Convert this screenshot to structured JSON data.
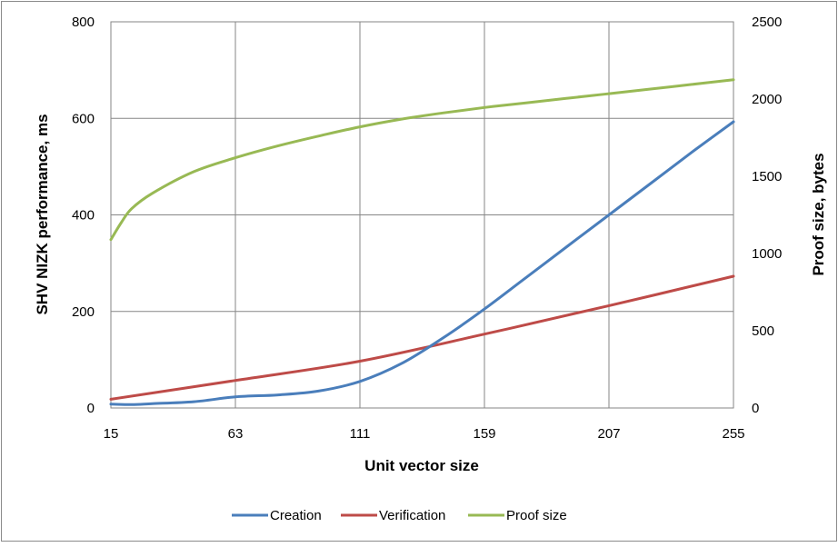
{
  "chart_data": {
    "type": "line",
    "title": "",
    "xlabel": "Unit vector size",
    "ylabel": "SHV NIZK performance, ms",
    "y2label": "Proof size, bytes",
    "x_ticks": [
      "15",
      "63",
      "111",
      "159",
      "207",
      "255"
    ],
    "y_ticks": [
      "0",
      "200",
      "400",
      "600",
      "800"
    ],
    "y2_ticks": [
      "0",
      "500",
      "1000",
      "1500",
      "2000",
      "2500"
    ],
    "xlim": [
      15,
      255
    ],
    "ylim": [
      0,
      800
    ],
    "y2lim": [
      0,
      2500
    ],
    "grid": true,
    "legend_position": "bottom",
    "series": [
      {
        "name": "Creation",
        "axis": "left",
        "color": "#4a7ebb",
        "x": [
          15,
          23,
          31,
          47,
          63,
          79,
          95,
          111,
          127,
          143,
          159,
          175,
          191,
          207,
          223,
          239,
          255
        ],
        "values": [
          8,
          7,
          9,
          13,
          23,
          27,
          35,
          55,
          92,
          145,
          205,
          270,
          335,
          400,
          465,
          530,
          593
        ]
      },
      {
        "name": "Verification",
        "axis": "left",
        "color": "#be4b48",
        "x": [
          15,
          63,
          111,
          159,
          207,
          255
        ],
        "values": [
          18,
          57,
          97,
          153,
          212,
          273
        ]
      },
      {
        "name": "Proof size",
        "axis": "right",
        "color": "#98b954",
        "x": [
          15,
          19,
          23,
          31,
          47,
          63,
          79,
          95,
          111,
          127,
          143,
          159,
          175,
          191,
          207,
          223,
          239,
          255
        ],
        "values": [
          1090,
          1200,
          1290,
          1390,
          1530,
          1620,
          1695,
          1760,
          1820,
          1870,
          1910,
          1945,
          1975,
          2005,
          2035,
          2065,
          2095,
          2125
        ]
      }
    ]
  }
}
